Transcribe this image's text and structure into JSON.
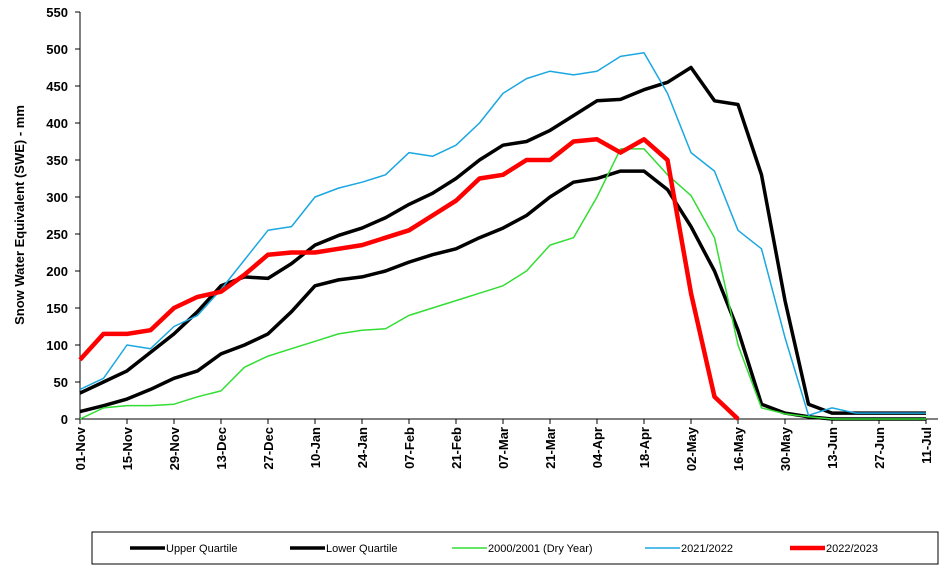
{
  "chart_data": {
    "type": "line",
    "ylabel": "Snow Water Equivalent (SWE)  -  mm",
    "categories": [
      "01-Nov",
      null,
      "15-Nov",
      null,
      "29-Nov",
      null,
      "13-Dec",
      null,
      "27-Dec",
      null,
      "10-Jan",
      null,
      "24-Jan",
      null,
      "07-Feb",
      null,
      "21-Feb",
      null,
      "07-Mar",
      null,
      "21-Mar",
      null,
      "04-Apr",
      null,
      "18-Apr",
      null,
      "02-May",
      null,
      "16-May",
      null,
      "30-May",
      null,
      "13-Jun",
      null,
      "27-Jun",
      null,
      "11-Jul"
    ],
    "ylim": [
      0,
      550
    ],
    "yticks": [
      0,
      50,
      100,
      150,
      200,
      250,
      300,
      350,
      400,
      450,
      500,
      550
    ],
    "grid": false,
    "legend": "bottom",
    "series": [
      {
        "name": "Upper Quartile",
        "color": "#000000",
        "values": [
          35,
          50,
          65,
          90,
          115,
          145,
          180,
          192,
          190,
          210,
          235,
          248,
          258,
          272,
          290,
          305,
          325,
          350,
          370,
          375,
          390,
          410,
          430,
          432,
          445,
          455,
          475,
          430,
          425,
          330,
          160,
          20,
          8,
          8,
          8,
          8,
          8
        ]
      },
      {
        "name": "Lower Quartile",
        "color": "#000000",
        "values": [
          10,
          18,
          27,
          40,
          55,
          65,
          88,
          100,
          115,
          145,
          180,
          188,
          192,
          200,
          212,
          222,
          230,
          245,
          258,
          275,
          300,
          320,
          325,
          335,
          335,
          310,
          260,
          200,
          120,
          20,
          8,
          3,
          0,
          0,
          0,
          0,
          0
        ]
      },
      {
        "name": "2000/2001  (Dry Year)",
        "color": "#33dd33",
        "values": [
          0,
          15,
          18,
          18,
          20,
          30,
          38,
          70,
          85,
          95,
          105,
          115,
          120,
          122,
          140,
          150,
          160,
          170,
          180,
          200,
          235,
          245,
          300,
          365,
          365,
          330,
          302,
          245,
          100,
          15,
          7,
          3,
          0,
          0,
          0,
          0,
          0
        ]
      },
      {
        "name": "2021/2022",
        "color": "#1ba7e0",
        "values": [
          40,
          55,
          100,
          95,
          125,
          140,
          175,
          215,
          255,
          260,
          300,
          312,
          320,
          330,
          360,
          355,
          370,
          400,
          440,
          460,
          470,
          465,
          470,
          490,
          495,
          440,
          360,
          335,
          255,
          230,
          110,
          5,
          15,
          8,
          8,
          8,
          8
        ]
      },
      {
        "name": "2022/2023",
        "color": "#ff0000",
        "values": [
          80,
          115,
          115,
          120,
          150,
          165,
          172,
          195,
          222,
          225,
          225,
          230,
          235,
          245,
          255,
          275,
          295,
          325,
          330,
          350,
          350,
          375,
          378,
          360,
          378,
          350,
          170,
          30,
          0,
          null,
          null,
          null,
          null,
          null,
          null,
          null,
          null
        ]
      }
    ]
  }
}
